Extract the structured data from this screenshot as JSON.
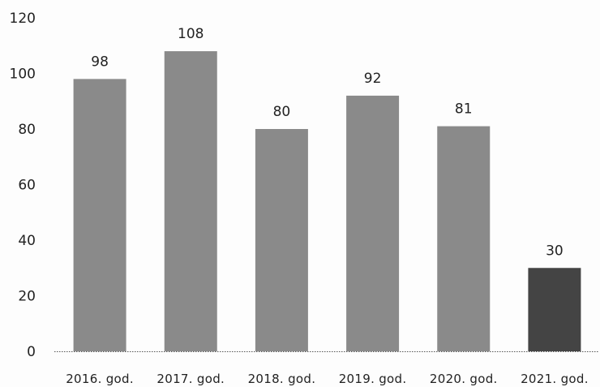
{
  "chart_data": {
    "type": "bar",
    "title": "",
    "xlabel": "",
    "ylabel": "",
    "categories": [
      "2016. god.",
      "2017. god.",
      "2018. god.",
      "2019. god.",
      "2020. god.",
      "2021. god."
    ],
    "values": [
      98,
      108,
      80,
      92,
      81,
      30
    ],
    "data_labels": [
      "98",
      "108",
      "80",
      "92",
      "81",
      "30"
    ],
    "ylim": [
      0,
      120
    ],
    "yticks": [
      0,
      20,
      40,
      60,
      80,
      100,
      120
    ],
    "grid": false,
    "legend": "none",
    "colors": {
      "bar": "#8a8a8a",
      "highlight_bar": "#444444",
      "highlight_index": 5
    }
  }
}
